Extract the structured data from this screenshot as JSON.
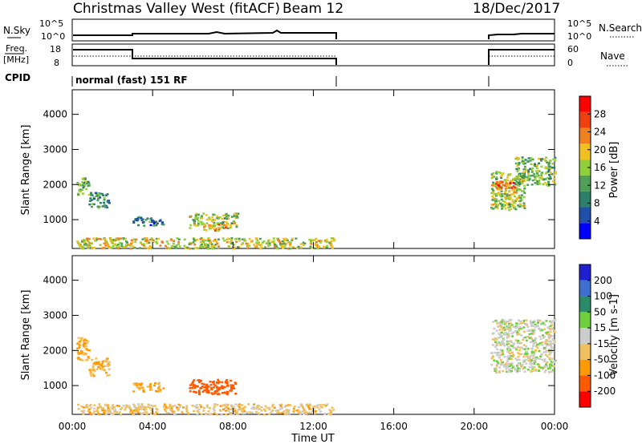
{
  "header": {
    "title": "Christmas Valley West (fitACF)",
    "beam": "Beam 12",
    "date": "18/Dec/2017"
  },
  "panels": {
    "nsky": {
      "label": "N.Sky",
      "right_label": "N.Search",
      "ticks": [
        "10^5",
        "10^0"
      ]
    },
    "freq": {
      "label_line1": "Freq.",
      "label_line2": "[MHz]",
      "right_label": "Nave",
      "left_ticks": [
        "18",
        "8"
      ],
      "right_ticks": [
        "60",
        "0"
      ]
    },
    "cpid": {
      "label": "CPID",
      "text": "normal (fast) 151 RF"
    }
  },
  "colors": {
    "power_scale": [
      "#0000ff",
      "#1f4fa8",
      "#2e7f6a",
      "#4f9f56",
      "#8fcf3a",
      "#f0c020",
      "#f08020",
      "#f04010",
      "#ff0000"
    ],
    "velocity_scale": [
      "#ff0000",
      "#ff5a00",
      "#ff9a00",
      "#f0c060",
      "#cccccc",
      "#6fcf3f",
      "#2a8a6a",
      "#3f6fd0",
      "#1f1fcf"
    ]
  },
  "chart_data": [
    {
      "type": "heatmap",
      "name": "power",
      "xlabel": "Time UT",
      "ylabel": "Slant Range [km]",
      "x_ticks": [
        "00:00",
        "04:00",
        "08:00",
        "12:00",
        "16:00",
        "20:00",
        "00:00"
      ],
      "xlim_hours": [
        0,
        24
      ],
      "y_ticks": [
        1000,
        2000,
        3000,
        4000
      ],
      "ylim_km": [
        180,
        4700
      ],
      "colorbar_label": "Power [dB]",
      "colorbar_ticks": [
        4,
        8,
        12,
        16,
        20,
        24,
        28
      ],
      "colorbar_range": [
        0,
        32
      ],
      "data_gap_hours": [
        13.0,
        20.7
      ],
      "echo_regions": [
        {
          "t0": 0.2,
          "t1": 0.8,
          "r0": 1700,
          "r1": 2250,
          "value": 14
        },
        {
          "t0": 0.8,
          "t1": 1.8,
          "r0": 1350,
          "r1": 1800,
          "value": 11
        },
        {
          "t0": 3.0,
          "t1": 4.5,
          "r0": 850,
          "r1": 1100,
          "value": 9
        },
        {
          "t0": 5.8,
          "t1": 8.2,
          "r0": 780,
          "r1": 1200,
          "value": 16
        },
        {
          "t0": 6.5,
          "t1": 7.6,
          "r0": 700,
          "r1": 900,
          "value": 22
        },
        {
          "t0": 0.2,
          "t1": 13.0,
          "r0": 200,
          "r1": 500,
          "value": 18
        },
        {
          "t0": 20.8,
          "t1": 22.5,
          "r0": 1300,
          "r1": 2400,
          "value": 16
        },
        {
          "t0": 21.0,
          "t1": 22.0,
          "r0": 1850,
          "r1": 2150,
          "value": 25
        },
        {
          "t0": 22.0,
          "t1": 24.0,
          "r0": 2000,
          "r1": 2800,
          "value": 14
        }
      ]
    },
    {
      "type": "heatmap",
      "name": "velocity",
      "xlabel": "Time UT",
      "ylabel": "Slant Range [km]",
      "x_ticks": [
        "00:00",
        "04:00",
        "08:00",
        "12:00",
        "16:00",
        "20:00",
        "00:00"
      ],
      "xlim_hours": [
        0,
        24
      ],
      "y_ticks": [
        1000,
        2000,
        3000,
        4000
      ],
      "ylim_km": [
        180,
        4700
      ],
      "colorbar_label": "Velocity [m s-1]",
      "colorbar_ticks": [
        200,
        100,
        50,
        15,
        -15,
        -50,
        -100,
        -200
      ],
      "data_gap_hours": [
        13.0,
        20.7
      ],
      "echo_regions": [
        {
          "t0": 0.2,
          "t1": 0.8,
          "r0": 1700,
          "r1": 2400,
          "value": -60
        },
        {
          "t0": 0.8,
          "t1": 1.8,
          "r0": 1300,
          "r1": 1800,
          "value": -50
        },
        {
          "t0": 3.0,
          "t1": 4.5,
          "r0": 850,
          "r1": 1100,
          "value": -55
        },
        {
          "t0": 5.8,
          "t1": 8.2,
          "r0": 780,
          "r1": 1200,
          "value": -150
        },
        {
          "t0": 0.2,
          "t1": 13.0,
          "r0": 200,
          "r1": 500,
          "value": -30
        },
        {
          "t0": 20.8,
          "t1": 24.0,
          "r0": 1400,
          "r1": 2900,
          "value": 0
        }
      ]
    }
  ]
}
